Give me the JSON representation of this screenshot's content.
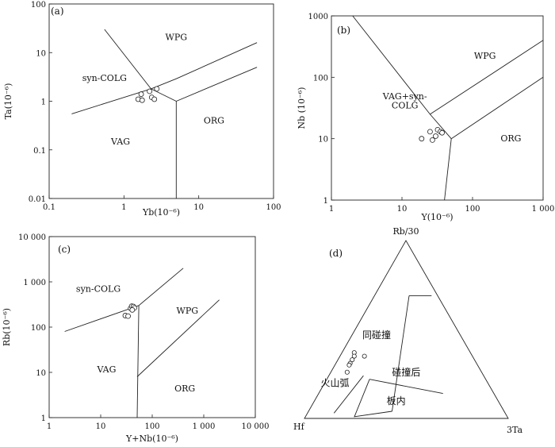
{
  "chart_data": [
    {
      "id": "a",
      "panel_label": "(a)",
      "type": "scatter",
      "xlabel": "Yb(10⁻⁶)",
      "ylabel": "Ta(10⁻⁶)",
      "xscale": "log",
      "yscale": "log",
      "xlim": [
        0.1,
        100
      ],
      "ylim": [
        0.01,
        100
      ],
      "xticks": [
        0.1,
        1,
        10,
        100
      ],
      "xtick_labels": [
        "0.1",
        "1",
        "10",
        "100"
      ],
      "yticks": [
        0.01,
        0.1,
        1,
        10,
        100
      ],
      "ytick_labels": [
        "0.01",
        "0.1",
        "1",
        "10",
        "100"
      ],
      "points": [
        [
          1.55,
          1.1
        ],
        [
          1.75,
          1.05
        ],
        [
          1.7,
          1.4
        ],
        [
          2.2,
          1.6
        ],
        [
          2.35,
          1.2
        ],
        [
          2.55,
          1.1
        ],
        [
          2.75,
          1.8
        ]
      ],
      "boundaries": [
        [
          [
            0.2,
            0.55
          ],
          [
            2.3,
            1.8
          ],
          [
            5.0,
            2.9
          ],
          [
            60,
            16
          ]
        ],
        [
          [
            0.55,
            30
          ],
          [
            2.3,
            1.8
          ]
        ],
        [
          [
            5.0,
            1.0
          ],
          [
            60,
            5.0
          ]
        ],
        [
          [
            2.3,
            1.8
          ],
          [
            5.0,
            1.0
          ],
          [
            5.0,
            0.01
          ]
        ]
      ],
      "regions": [
        {
          "label": "WPG",
          "at": [
            5,
            18
          ]
        },
        {
          "label": "syn-COLG",
          "at": [
            0.55,
            2.6
          ]
        },
        {
          "label": "VAG",
          "at": [
            0.9,
            0.13
          ]
        },
        {
          "label": "ORG",
          "at": [
            16,
            0.35
          ]
        }
      ]
    },
    {
      "id": "b",
      "panel_label": "(b)",
      "type": "scatter",
      "xlabel": "Y(10⁻⁶)",
      "ylabel": "Nb (10⁻⁶)",
      "xscale": "log",
      "yscale": "log",
      "xlim": [
        1,
        1000
      ],
      "ylim": [
        1,
        1000
      ],
      "xticks": [
        1,
        10,
        100,
        1000
      ],
      "xtick_labels": [
        "1",
        "10",
        "100",
        "1 000"
      ],
      "yticks": [
        1,
        10,
        100,
        1000
      ],
      "ytick_labels": [
        "1",
        "10",
        "100",
        "1000"
      ],
      "points": [
        [
          19,
          10
        ],
        [
          25,
          13
        ],
        [
          27,
          9.5
        ],
        [
          30,
          11
        ],
        [
          32,
          14
        ],
        [
          35,
          13
        ],
        [
          37,
          12.5
        ]
      ],
      "boundaries": [
        [
          [
            2,
            1000
          ],
          [
            25,
            25
          ],
          [
            50,
            10
          ]
        ],
        [
          [
            25,
            25
          ],
          [
            1000,
            400
          ]
        ],
        [
          [
            50,
            10
          ],
          [
            1000,
            100
          ]
        ],
        [
          [
            50,
            10
          ],
          [
            40,
            1
          ]
        ]
      ],
      "regions": [
        {
          "label": "WPG",
          "at": [
            150,
            200
          ]
        },
        {
          "label": "VAG+syn-",
          "at": [
            11,
            44
          ]
        },
        {
          "label": "COLG",
          "at": [
            11,
            31
          ]
        },
        {
          "label": "ORG",
          "at": [
            350,
            9
          ]
        }
      ]
    },
    {
      "id": "c",
      "panel_label": "(c)",
      "type": "scatter",
      "xlabel": "Y+Nb(10⁻⁶)",
      "ylabel": "Rb(10⁻⁶)",
      "xscale": "log",
      "yscale": "log",
      "xlim": [
        1,
        10000
      ],
      "ylim": [
        1,
        10000
      ],
      "xticks": [
        1,
        10,
        100,
        1000,
        10000
      ],
      "xtick_labels": [
        "1",
        "10",
        "100",
        "1 000",
        "10 000"
      ],
      "yticks": [
        1,
        10,
        100,
        1000,
        10000
      ],
      "ytick_labels": [
        "1",
        "10",
        "100",
        "1 000",
        "10 000"
      ],
      "points": [
        [
          30,
          180
        ],
        [
          34,
          175
        ],
        [
          38,
          260
        ],
        [
          40,
          290
        ],
        [
          43,
          285
        ],
        [
          45,
          265
        ],
        [
          41,
          240
        ]
      ],
      "boundaries": [
        [
          [
            2,
            80
          ],
          [
            55,
            300
          ]
        ],
        [
          [
            55,
            300
          ],
          [
            400,
            2000
          ]
        ],
        [
          [
            55,
            300
          ],
          [
            51,
            1
          ]
        ],
        [
          [
            51,
            8
          ],
          [
            2000,
            400
          ]
        ]
      ],
      "regions": [
        {
          "label": "syn-COLG",
          "at": [
            9,
            600
          ]
        },
        {
          "label": "WPG",
          "at": [
            480,
            200
          ]
        },
        {
          "label": "VAG",
          "at": [
            13,
            10
          ]
        },
        {
          "label": "ORG",
          "at": [
            430,
            3.8
          ]
        }
      ]
    },
    {
      "id": "d",
      "panel_label": "(d)",
      "type": "ternary",
      "apices": [
        "Rb/30",
        "Hf",
        "3Ta"
      ],
      "points": [
        [
          0.37,
          0.57,
          0.06
        ],
        [
          0.35,
          0.58,
          0.07
        ],
        [
          0.33,
          0.6,
          0.07
        ],
        [
          0.31,
          0.62,
          0.07
        ],
        [
          0.3,
          0.63,
          0.07
        ],
        [
          0.26,
          0.66,
          0.08
        ],
        [
          0.35,
          0.53,
          0.12
        ]
      ],
      "boundaries": [
        [
          [
            0.69,
            0.14,
            0.17
          ],
          [
            0.69,
            0.03,
            0.28
          ]
        ],
        [
          [
            0.69,
            0.14,
            0.17
          ],
          [
            0.04,
            0.55,
            0.41
          ]
        ],
        [
          [
            0.04,
            0.55,
            0.41
          ],
          [
            0.01,
            0.75,
            0.24
          ],
          [
            0.22,
            0.57,
            0.21
          ]
        ],
        [
          [
            0.22,
            0.57,
            0.21
          ],
          [
            0.14,
            0.25,
            0.61
          ]
        ],
        [
          [
            0.24,
            0.59,
            0.17
          ],
          [
            0.03,
            0.84,
            0.13
          ]
        ]
      ],
      "regions": [
        {
          "label": "同碰撞",
          "at": [
            0.45,
            0.42,
            0.13
          ]
        },
        {
          "label": "碰撞后",
          "at": [
            0.24,
            0.38,
            0.38
          ]
        },
        {
          "label": "火山弧",
          "at": [
            0.18,
            0.76,
            0.06
          ]
        },
        {
          "label": "板内",
          "at": [
            0.08,
            0.51,
            0.41
          ]
        }
      ]
    }
  ]
}
